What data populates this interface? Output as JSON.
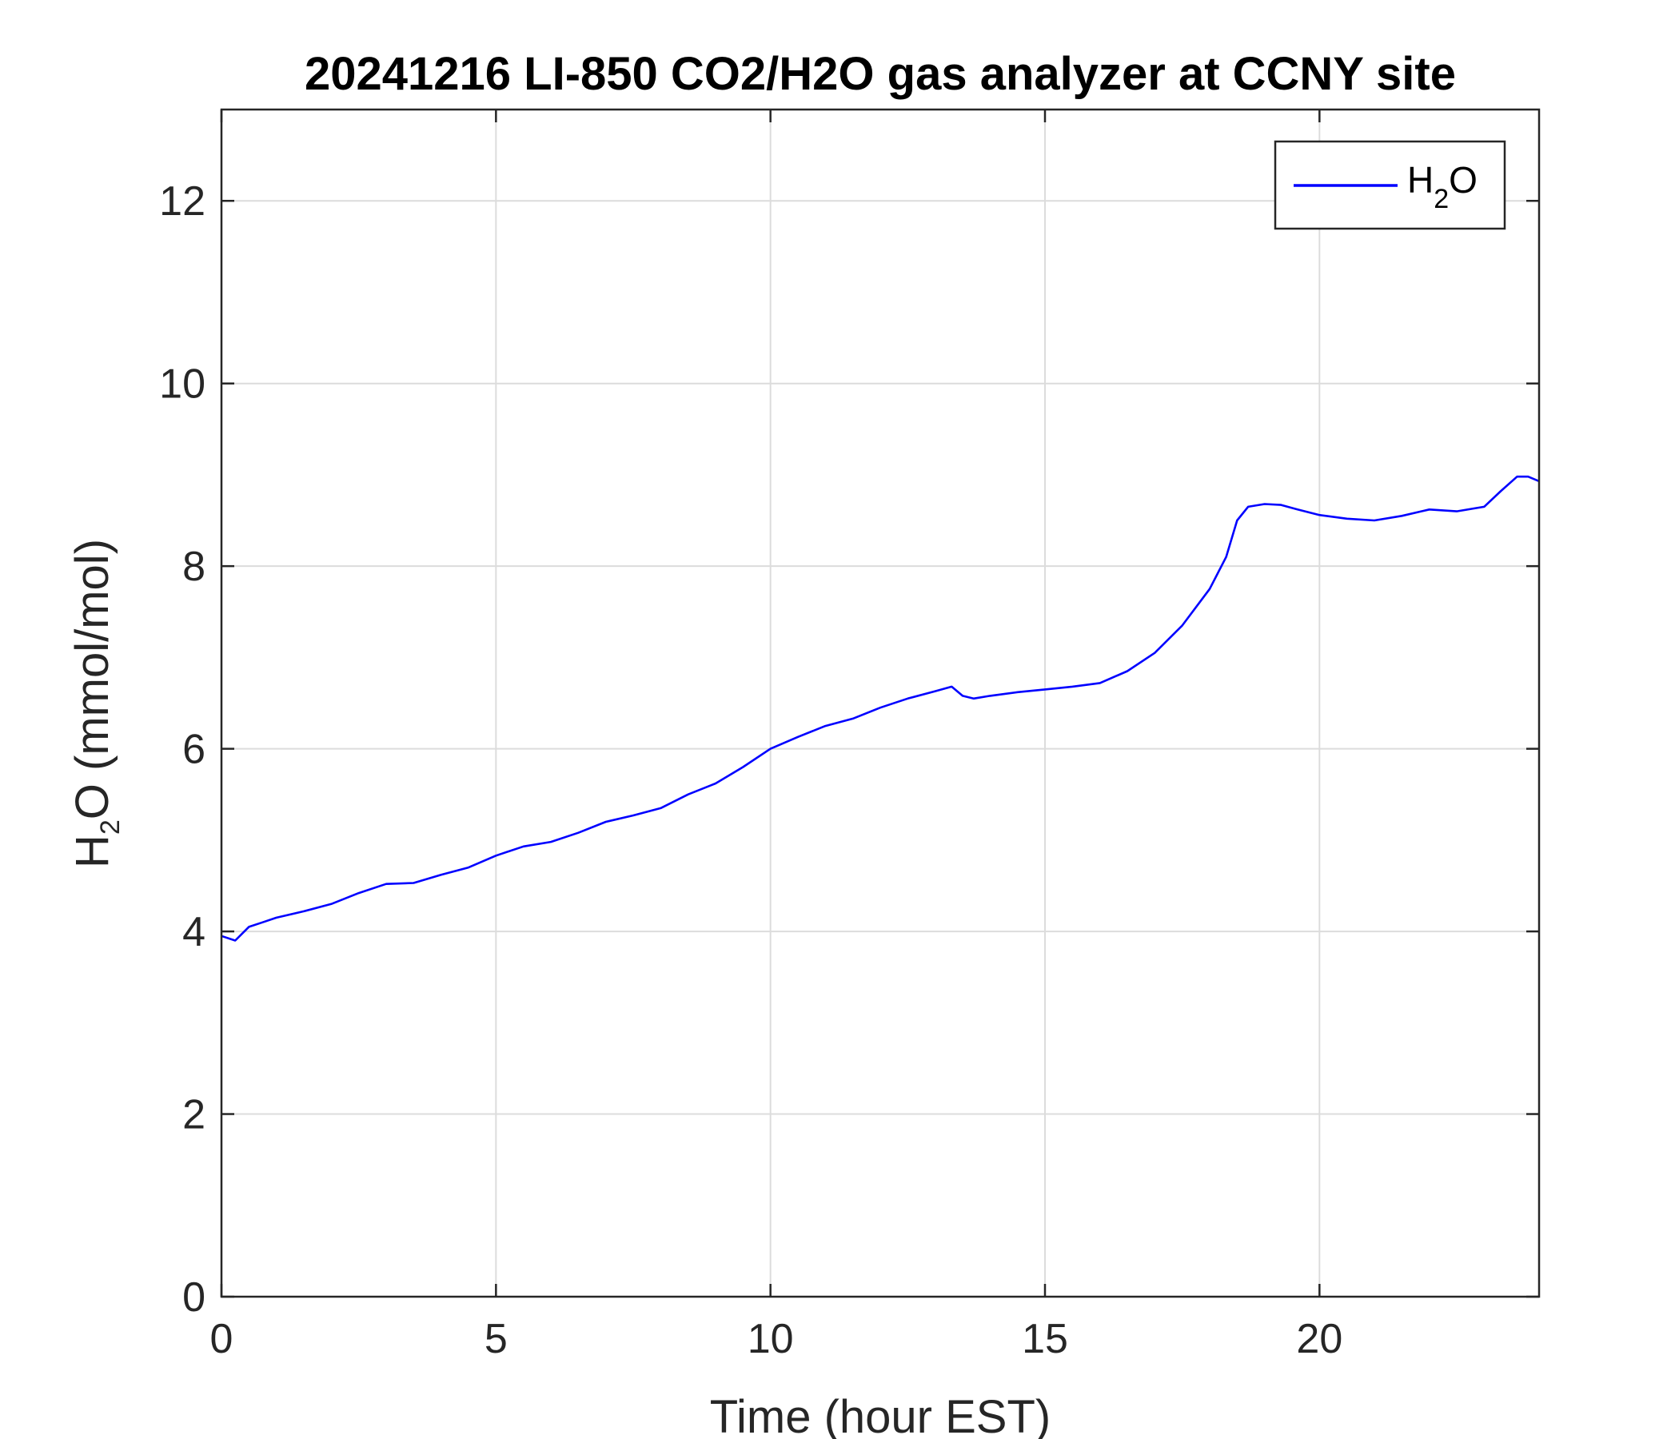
{
  "chart_data": {
    "type": "line",
    "title": "20241216 LI-850 CO2/H2O gas analyzer at CCNY site",
    "xlabel": "Time (hour EST)",
    "ylabel": {
      "main": "H",
      "sub": "2",
      "rest": "O (mmol/mol)"
    },
    "xlim": [
      0,
      24
    ],
    "ylim": [
      0,
      13
    ],
    "xticks": [
      0,
      5,
      10,
      15,
      20
    ],
    "yticks": [
      0,
      2,
      4,
      6,
      8,
      10,
      12
    ],
    "grid": true,
    "legend_position": "top-right",
    "series": [
      {
        "name": {
          "main": "H",
          "sub": "2",
          "rest": "O"
        },
        "color": "#0000ff",
        "x": [
          0,
          0.25,
          0.5,
          0.75,
          1,
          1.5,
          2,
          2.5,
          3,
          3.5,
          4,
          4.5,
          5,
          5.5,
          6,
          6.5,
          7,
          7.5,
          8,
          8.5,
          9,
          9.5,
          10,
          10.5,
          11,
          11.5,
          12,
          12.5,
          13,
          13.3,
          13.5,
          13.7,
          14,
          14.5,
          15,
          15.5,
          16,
          16.5,
          17,
          17.5,
          18,
          18.3,
          18.5,
          18.7,
          19,
          19.3,
          19.6,
          20,
          20.5,
          21,
          21.5,
          22,
          22.5,
          23,
          23.3,
          23.6,
          23.8,
          24
        ],
        "y": [
          3.95,
          3.9,
          4.05,
          4.1,
          4.15,
          4.22,
          4.3,
          4.42,
          4.52,
          4.53,
          4.62,
          4.7,
          4.83,
          4.93,
          4.98,
          5.08,
          5.2,
          5.27,
          5.35,
          5.5,
          5.62,
          5.8,
          6.0,
          6.13,
          6.25,
          6.33,
          6.45,
          6.55,
          6.63,
          6.68,
          6.58,
          6.55,
          6.58,
          6.62,
          6.65,
          6.68,
          6.72,
          6.85,
          7.05,
          7.35,
          7.75,
          8.1,
          8.5,
          8.65,
          8.68,
          8.67,
          8.62,
          8.56,
          8.52,
          8.5,
          8.55,
          8.62,
          8.6,
          8.65,
          8.82,
          8.98,
          8.98,
          8.93
        ]
      }
    ]
  }
}
